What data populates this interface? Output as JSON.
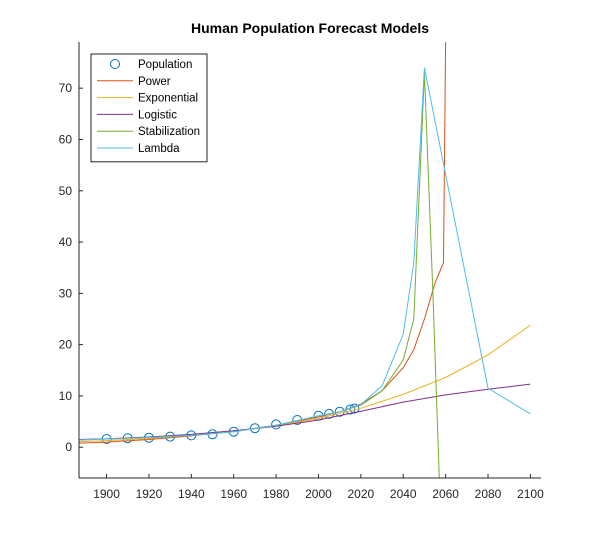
{
  "chart_data": {
    "type": "line",
    "title": "Human Population Forecast Models",
    "xlabel": "",
    "ylabel": "",
    "xlim": [
      1887,
      2105
    ],
    "ylim": [
      -6,
      79
    ],
    "xticks": [
      1900,
      1920,
      1940,
      1960,
      1980,
      2000,
      2020,
      2040,
      2060,
      2080,
      2100
    ],
    "yticks": [
      0,
      10,
      20,
      30,
      40,
      50,
      60,
      70
    ],
    "grid": false,
    "legend_position": "top-left",
    "series": [
      {
        "name": "Population",
        "kind": "markers",
        "marker": "circle",
        "color": "#0072BD",
        "x": [
          1900,
          1910,
          1920,
          1930,
          1940,
          1950,
          1960,
          1970,
          1980,
          1990,
          2000,
          2005,
          2010,
          2015,
          2017
        ],
        "y": [
          1.6,
          1.75,
          1.86,
          2.07,
          2.3,
          2.52,
          3.02,
          3.7,
          4.44,
          5.31,
          6.12,
          6.5,
          6.92,
          7.35,
          7.53
        ]
      },
      {
        "name": "Power",
        "kind": "line",
        "color": "#D95319",
        "x": [
          1887,
          1900,
          1920,
          1940,
          1960,
          1980,
          2000,
          2010,
          2020,
          2030,
          2040,
          2045,
          2050,
          2055,
          2059,
          2060
        ],
        "y": [
          0.8,
          1.0,
          1.5,
          2.2,
          3.1,
          4.3,
          5.9,
          6.9,
          8.4,
          11.0,
          15.5,
          19.0,
          25.0,
          32.0,
          36.0,
          79.0
        ]
      },
      {
        "name": "Exponential",
        "kind": "line",
        "color": "#EDB120",
        "x": [
          1887,
          1900,
          1920,
          1940,
          1960,
          1980,
          2000,
          2020,
          2040,
          2060,
          2080,
          2100
        ],
        "y": [
          1.1,
          1.3,
          1.7,
          2.3,
          3.1,
          4.2,
          5.6,
          7.6,
          10.3,
          13.6,
          18.0,
          23.8
        ]
      },
      {
        "name": "Logistic",
        "kind": "line",
        "color": "#7E2F8E",
        "x": [
          1887,
          1900,
          1920,
          1940,
          1960,
          1980,
          2000,
          2020,
          2040,
          2060,
          2080,
          2100
        ],
        "y": [
          1.5,
          1.65,
          2.0,
          2.5,
          3.2,
          4.1,
          5.3,
          7.0,
          8.8,
          10.2,
          11.3,
          12.3
        ]
      },
      {
        "name": "Stabilization",
        "kind": "line",
        "color": "#77AC30",
        "x": [
          1887,
          1900,
          1920,
          1940,
          1960,
          1980,
          2000,
          2010,
          2020,
          2030,
          2040,
          2045,
          2050,
          2054,
          2057
        ],
        "y": [
          1.4,
          1.6,
          1.9,
          2.3,
          3.0,
          4.3,
          6.1,
          6.9,
          8.2,
          11.0,
          17.0,
          25.0,
          73.0,
          30.0,
          -6.0
        ]
      },
      {
        "name": "Lambda",
        "kind": "line",
        "color": "#4DBEEE",
        "x": [
          1887,
          1900,
          1920,
          1940,
          1960,
          1980,
          2000,
          2010,
          2020,
          2030,
          2040,
          2045,
          2050,
          2080,
          2100
        ],
        "y": [
          1.4,
          1.6,
          1.9,
          2.3,
          3.0,
          4.3,
          6.1,
          6.9,
          8.3,
          12.0,
          22.0,
          36.0,
          74.0,
          11.5,
          6.5
        ]
      }
    ]
  }
}
